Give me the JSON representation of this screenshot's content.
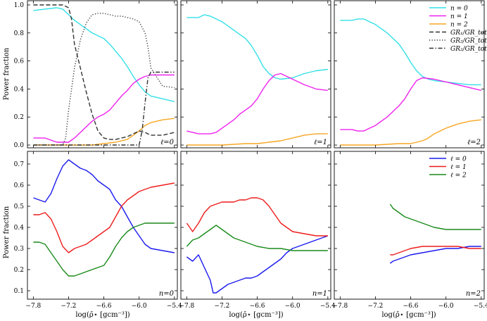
{
  "figure": {
    "ylabel": "Power fraction",
    "xlabel": "log(ρ̄⋆ [gcm⁻³])",
    "xticks": [
      "−7.8",
      "−7.2",
      "−6.6",
      "−6.0",
      "−5.4"
    ],
    "top_yticks": [
      "0.0",
      "0.2",
      "0.4",
      "0.6",
      "0.8",
      "1.0"
    ],
    "bottom_yticks": [
      "0.1",
      "0.2",
      "0.3",
      "0.4",
      "0.5",
      "0.6",
      "0.7"
    ],
    "colors": {
      "cyan": "#33e0e8",
      "magenta": "#ee22ee",
      "orange": "#f5a623",
      "blue": "#1a1aee",
      "red": "#ee1c1c",
      "green": "#1a8a1a",
      "gr": "#333333"
    }
  },
  "chart_data": [
    {
      "type": "line",
      "panel": "top-left",
      "annotation": "ℓ=0",
      "ylabel": "Power fraction",
      "xlim": [
        -7.9,
        -5.35
      ],
      "ylim": [
        -0.02,
        1.03
      ],
      "legend": [],
      "series": [
        {
          "name": "n = 0",
          "color": "cyan",
          "dash": "solid",
          "x": [
            -7.8,
            -7.6,
            -7.4,
            -7.3,
            -7.2,
            -7.1,
            -7.0,
            -6.9,
            -6.8,
            -6.7,
            -6.6,
            -6.5,
            -6.4,
            -6.3,
            -6.2,
            -6.1,
            -6.0,
            -5.9,
            -5.8,
            -5.6,
            -5.4
          ],
          "y": [
            0.96,
            0.97,
            0.98,
            0.97,
            0.93,
            0.89,
            0.86,
            0.83,
            0.8,
            0.78,
            0.76,
            0.72,
            0.67,
            0.62,
            0.56,
            0.49,
            0.43,
            0.38,
            0.35,
            0.33,
            0.31
          ]
        },
        {
          "name": "n = 1",
          "color": "magenta",
          "dash": "solid",
          "x": [
            -7.8,
            -7.6,
            -7.4,
            -7.3,
            -7.2,
            -7.1,
            -7.0,
            -6.9,
            -6.8,
            -6.7,
            -6.6,
            -6.5,
            -6.4,
            -6.3,
            -6.2,
            -6.1,
            -6.0,
            -5.9,
            -5.8,
            -5.6,
            -5.4
          ],
          "y": [
            0.05,
            0.05,
            0.02,
            0.02,
            0.02,
            0.05,
            0.09,
            0.13,
            0.17,
            0.2,
            0.22,
            0.25,
            0.3,
            0.35,
            0.39,
            0.44,
            0.47,
            0.49,
            0.5,
            0.5,
            0.5
          ]
        },
        {
          "name": "n = 2",
          "color": "orange",
          "dash": "solid",
          "x": [
            -7.8,
            -7.4,
            -7.0,
            -6.8,
            -6.6,
            -6.4,
            -6.2,
            -6.1,
            -6.0,
            -5.9,
            -5.8,
            -5.6,
            -5.4
          ],
          "y": [
            0.0,
            0.0,
            0.0,
            0.0,
            0.01,
            0.02,
            0.04,
            0.07,
            0.1,
            0.14,
            0.16,
            0.18,
            0.19
          ]
        },
        {
          "name": "GR₁/GR_tot",
          "color": "gr",
          "dash": "dashed",
          "x": [
            -7.8,
            -7.5,
            -7.3,
            -7.2,
            -7.15,
            -7.1,
            -7.0,
            -6.9,
            -6.8,
            -6.7,
            -6.6,
            -6.5,
            -6.4,
            -6.3,
            -6.2,
            -6.1,
            -6.0,
            -5.9,
            -5.8,
            -5.6,
            -5.4
          ],
          "y": [
            1.0,
            1.0,
            1.0,
            0.98,
            0.9,
            0.72,
            0.55,
            0.38,
            0.22,
            0.1,
            0.05,
            0.04,
            0.04,
            0.05,
            0.06,
            0.08,
            0.1,
            0.09,
            0.07,
            0.07,
            0.09
          ]
        },
        {
          "name": "GR₂/GR_tot",
          "color": "gr",
          "dash": "dotted",
          "x": [
            -7.8,
            -7.4,
            -7.3,
            -7.25,
            -7.2,
            -7.1,
            -7.0,
            -6.9,
            -6.8,
            -6.7,
            -6.6,
            -6.5,
            -6.4,
            -6.3,
            -6.2,
            -6.1,
            -6.0,
            -5.9,
            -5.85,
            -5.8,
            -5.6,
            -5.4
          ],
          "y": [
            0.0,
            0.0,
            0.0,
            0.05,
            0.25,
            0.55,
            0.75,
            0.87,
            0.93,
            0.94,
            0.94,
            0.93,
            0.92,
            0.92,
            0.91,
            0.9,
            0.88,
            0.8,
            0.7,
            0.55,
            0.42,
            0.41
          ]
        },
        {
          "name": "GR₂/GR_tot",
          "color": "gr",
          "dash": "dashdot",
          "x": [
            -7.8,
            -7.0,
            -6.6,
            -6.2,
            -6.0,
            -5.95,
            -5.9,
            -5.85,
            -5.8,
            -5.6,
            -5.4
          ],
          "y": [
            0.0,
            0.0,
            0.0,
            0.0,
            0.0,
            0.1,
            0.3,
            0.48,
            0.52,
            0.52,
            0.52
          ]
        }
      ]
    },
    {
      "type": "line",
      "panel": "top-middle",
      "annotation": "ℓ=1",
      "xlim": [
        -7.9,
        -5.35
      ],
      "ylim": [
        -0.02,
        1.03
      ],
      "legend": [],
      "series": [
        {
          "name": "n = 0",
          "color": "cyan",
          "dash": "solid",
          "x": [
            -7.8,
            -7.6,
            -7.5,
            -7.4,
            -7.3,
            -7.2,
            -7.1,
            -7.0,
            -6.9,
            -6.8,
            -6.7,
            -6.6,
            -6.5,
            -6.4,
            -6.3,
            -6.2,
            -6.0,
            -5.8,
            -5.6,
            -5.4
          ],
          "y": [
            0.91,
            0.91,
            0.93,
            0.92,
            0.9,
            0.88,
            0.85,
            0.82,
            0.79,
            0.76,
            0.71,
            0.64,
            0.56,
            0.51,
            0.48,
            0.47,
            0.48,
            0.51,
            0.53,
            0.54
          ]
        },
        {
          "name": "n = 1",
          "color": "magenta",
          "dash": "solid",
          "x": [
            -7.8,
            -7.6,
            -7.5,
            -7.4,
            -7.3,
            -7.2,
            -7.1,
            -7.0,
            -6.9,
            -6.8,
            -6.7,
            -6.6,
            -6.5,
            -6.4,
            -6.3,
            -6.2,
            -6.1,
            -6.0,
            -5.9,
            -5.8,
            -5.6,
            -5.4
          ],
          "y": [
            0.1,
            0.08,
            0.08,
            0.08,
            0.09,
            0.12,
            0.15,
            0.18,
            0.22,
            0.25,
            0.28,
            0.33,
            0.4,
            0.46,
            0.5,
            0.51,
            0.49,
            0.47,
            0.45,
            0.43,
            0.4,
            0.39
          ]
        },
        {
          "name": "n = 2",
          "color": "orange",
          "dash": "solid",
          "x": [
            -7.8,
            -7.2,
            -6.8,
            -6.6,
            -6.4,
            -6.2,
            -6.0,
            -5.8,
            -5.6,
            -5.4
          ],
          "y": [
            0.0,
            0.0,
            0.01,
            0.01,
            0.02,
            0.03,
            0.05,
            0.07,
            0.08,
            0.08
          ]
        }
      ]
    },
    {
      "type": "line",
      "panel": "top-right",
      "annotation": "ℓ=2",
      "xlim": [
        -7.9,
        -5.35
      ],
      "ylim": [
        -0.02,
        1.03
      ],
      "legend": [
        "n = 0",
        "n = 1",
        "n = 2",
        "GR₁/GR_tot",
        "GR₂/GR_tot",
        "GR₂/GR_tot"
      ],
      "series": [
        {
          "name": "n = 0",
          "color": "cyan",
          "dash": "solid",
          "x": [
            -7.8,
            -7.6,
            -7.5,
            -7.4,
            -7.3,
            -7.2,
            -7.1,
            -7.0,
            -6.9,
            -6.8,
            -6.7,
            -6.6,
            -6.5,
            -6.4,
            -6.3,
            -6.2,
            -6.0,
            -5.8,
            -5.6,
            -5.4
          ],
          "y": [
            0.89,
            0.89,
            0.9,
            0.9,
            0.88,
            0.86,
            0.83,
            0.8,
            0.76,
            0.72,
            0.66,
            0.59,
            0.53,
            0.49,
            0.47,
            0.46,
            0.45,
            0.44,
            0.43,
            0.43
          ]
        },
        {
          "name": "n = 1",
          "color": "magenta",
          "dash": "solid",
          "x": [
            -7.8,
            -7.6,
            -7.5,
            -7.4,
            -7.3,
            -7.2,
            -7.1,
            -7.0,
            -6.9,
            -6.8,
            -6.7,
            -6.6,
            -6.5,
            -6.4,
            -6.2,
            -6.0,
            -5.8,
            -5.6,
            -5.4
          ],
          "y": [
            0.11,
            0.11,
            0.1,
            0.1,
            0.12,
            0.14,
            0.17,
            0.2,
            0.24,
            0.28,
            0.33,
            0.4,
            0.46,
            0.48,
            0.47,
            0.45,
            0.43,
            0.41,
            0.39
          ]
        },
        {
          "name": "n = 2",
          "color": "orange",
          "dash": "solid",
          "x": [
            -7.8,
            -7.2,
            -6.8,
            -6.6,
            -6.4,
            -6.3,
            -6.2,
            -6.0,
            -5.8,
            -5.6,
            -5.4
          ],
          "y": [
            0.0,
            0.0,
            0.01,
            0.01,
            0.03,
            0.05,
            0.08,
            0.12,
            0.15,
            0.17,
            0.18
          ]
        }
      ]
    },
    {
      "type": "line",
      "panel": "bottom-left",
      "annotation": "n=0",
      "ylabel": "Power fraction",
      "xlabel": "log(ρ̄⋆ [gcm⁻³])",
      "xlim": [
        -7.9,
        -5.35
      ],
      "ylim": [
        0.06,
        0.76
      ],
      "legend": [],
      "series": [
        {
          "name": "ℓ = 0",
          "color": "blue",
          "dash": "solid",
          "x": [
            -7.8,
            -7.7,
            -7.6,
            -7.5,
            -7.4,
            -7.3,
            -7.2,
            -7.1,
            -7.0,
            -6.9,
            -6.8,
            -6.7,
            -6.6,
            -6.5,
            -6.4,
            -6.3,
            -6.2,
            -6.1,
            -6.0,
            -5.9,
            -5.8,
            -5.6,
            -5.4
          ],
          "y": [
            0.54,
            0.53,
            0.52,
            0.56,
            0.63,
            0.69,
            0.72,
            0.7,
            0.68,
            0.67,
            0.65,
            0.62,
            0.6,
            0.58,
            0.53,
            0.5,
            0.45,
            0.4,
            0.36,
            0.32,
            0.3,
            0.29,
            0.28
          ]
        },
        {
          "name": "ℓ = 1",
          "color": "red",
          "dash": "solid",
          "x": [
            -7.8,
            -7.7,
            -7.6,
            -7.5,
            -7.4,
            -7.3,
            -7.2,
            -7.1,
            -7.0,
            -6.9,
            -6.8,
            -6.7,
            -6.6,
            -6.5,
            -6.4,
            -6.3,
            -6.2,
            -6.1,
            -6.0,
            -5.9,
            -5.8,
            -5.6,
            -5.4
          ],
          "y": [
            0.46,
            0.46,
            0.47,
            0.44,
            0.38,
            0.31,
            0.28,
            0.3,
            0.31,
            0.32,
            0.34,
            0.36,
            0.38,
            0.4,
            0.45,
            0.5,
            0.53,
            0.55,
            0.57,
            0.58,
            0.59,
            0.6,
            0.61
          ]
        },
        {
          "name": "ℓ = 2",
          "color": "green",
          "dash": "solid",
          "x": [
            -7.8,
            -7.7,
            -7.6,
            -7.5,
            -7.4,
            -7.3,
            -7.2,
            -7.1,
            -7.0,
            -6.9,
            -6.8,
            -6.7,
            -6.6,
            -6.5,
            -6.4,
            -6.3,
            -6.2,
            -6.1,
            -6.0,
            -5.9,
            -5.8,
            -5.6,
            -5.4
          ],
          "y": [
            0.33,
            0.33,
            0.32,
            0.28,
            0.24,
            0.2,
            0.17,
            0.17,
            0.18,
            0.19,
            0.2,
            0.21,
            0.22,
            0.26,
            0.31,
            0.35,
            0.38,
            0.4,
            0.41,
            0.42,
            0.42,
            0.42,
            0.42
          ]
        }
      ]
    },
    {
      "type": "line",
      "panel": "bottom-middle",
      "annotation": "n=1",
      "xlabel": "log(ρ̄⋆ [gcm⁻³])",
      "xlim": [
        -7.9,
        -5.35
      ],
      "ylim": [
        0.06,
        0.76
      ],
      "legend": [],
      "series": [
        {
          "name": "ℓ = 0",
          "color": "blue",
          "dash": "solid",
          "x": [
            -7.8,
            -7.7,
            -7.6,
            -7.5,
            -7.4,
            -7.35,
            -7.3,
            -7.2,
            -7.1,
            -7.0,
            -6.9,
            -6.8,
            -6.7,
            -6.6,
            -6.5,
            -6.4,
            -6.3,
            -6.2,
            -6.1,
            -6.0,
            -5.8,
            -5.6,
            -5.4
          ],
          "y": [
            0.26,
            0.24,
            0.27,
            0.21,
            0.15,
            0.09,
            0.09,
            0.11,
            0.13,
            0.14,
            0.15,
            0.16,
            0.16,
            0.17,
            0.19,
            0.21,
            0.23,
            0.25,
            0.28,
            0.3,
            0.32,
            0.34,
            0.36
          ]
        },
        {
          "name": "ℓ = 1",
          "color": "red",
          "dash": "solid",
          "x": [
            -7.8,
            -7.7,
            -7.6,
            -7.5,
            -7.4,
            -7.3,
            -7.2,
            -7.1,
            -7.0,
            -6.9,
            -6.8,
            -6.7,
            -6.6,
            -6.5,
            -6.4,
            -6.3,
            -6.2,
            -6.1,
            -6.0,
            -5.8,
            -5.6,
            -5.4
          ],
          "y": [
            0.42,
            0.38,
            0.42,
            0.47,
            0.5,
            0.51,
            0.52,
            0.52,
            0.52,
            0.53,
            0.53,
            0.54,
            0.54,
            0.53,
            0.5,
            0.46,
            0.42,
            0.4,
            0.38,
            0.37,
            0.36,
            0.36
          ]
        },
        {
          "name": "ℓ = 2",
          "color": "green",
          "dash": "solid",
          "x": [
            -7.8,
            -7.7,
            -7.6,
            -7.5,
            -7.4,
            -7.3,
            -7.2,
            -7.1,
            -7.0,
            -6.8,
            -6.6,
            -6.4,
            -6.2,
            -6.0,
            -5.8,
            -5.6,
            -5.4
          ],
          "y": [
            0.31,
            0.34,
            0.35,
            0.37,
            0.39,
            0.41,
            0.39,
            0.37,
            0.35,
            0.33,
            0.31,
            0.3,
            0.3,
            0.29,
            0.29,
            0.29,
            0.29
          ]
        }
      ]
    },
    {
      "type": "line",
      "panel": "bottom-right",
      "annotation": "n=2",
      "xlabel": "log(ρ̄⋆ [gcm⁻³])",
      "xlim": [
        -7.9,
        -5.35
      ],
      "ylim": [
        0.06,
        0.76
      ],
      "legend": [
        "ℓ = 0",
        "ℓ = 1",
        "ℓ = 2"
      ],
      "series": [
        {
          "name": "ℓ = 0",
          "color": "blue",
          "dash": "solid",
          "x": [
            -6.95,
            -6.9,
            -6.8,
            -6.7,
            -6.6,
            -6.4,
            -6.2,
            -6.0,
            -5.8,
            -5.6,
            -5.4
          ],
          "y": [
            0.23,
            0.24,
            0.25,
            0.26,
            0.27,
            0.28,
            0.29,
            0.3,
            0.3,
            0.31,
            0.31
          ]
        },
        {
          "name": "ℓ = 1",
          "color": "red",
          "dash": "solid",
          "x": [
            -6.95,
            -6.9,
            -6.8,
            -6.7,
            -6.6,
            -6.4,
            -6.2,
            -6.0,
            -5.8,
            -5.6,
            -5.4
          ],
          "y": [
            0.27,
            0.27,
            0.28,
            0.29,
            0.3,
            0.31,
            0.31,
            0.31,
            0.31,
            0.3,
            0.3
          ]
        },
        {
          "name": "ℓ = 2",
          "color": "green",
          "dash": "solid",
          "x": [
            -6.95,
            -6.9,
            -6.8,
            -6.7,
            -6.6,
            -6.4,
            -6.2,
            -6.0,
            -5.8,
            -5.6,
            -5.4
          ],
          "y": [
            0.51,
            0.49,
            0.47,
            0.45,
            0.44,
            0.42,
            0.4,
            0.39,
            0.39,
            0.39,
            0.39
          ]
        }
      ]
    }
  ]
}
